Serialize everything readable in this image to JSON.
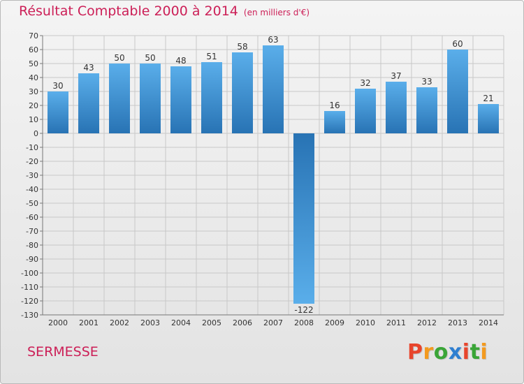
{
  "header": {
    "title": "Résultat Comptable 2000 à 2014",
    "unit": "(en milliers d'€)"
  },
  "footer": {
    "commune": "SERMESSE",
    "logo": "Proxiti",
    "logo_colors": [
      "#e8452c",
      "#f39a1f",
      "#3aa537",
      "#2f7fd0",
      "#e8452c",
      "#3aa537",
      "#f39a1f"
    ]
  },
  "chart_data": {
    "type": "bar",
    "title": "Résultat Comptable 2000 à 2014",
    "categories": [
      "2000",
      "2001",
      "2002",
      "2003",
      "2004",
      "2005",
      "2006",
      "2007",
      "2008",
      "2009",
      "2010",
      "2011",
      "2012",
      "2013",
      "2014"
    ],
    "values": [
      30,
      43,
      50,
      50,
      48,
      51,
      58,
      63,
      -122,
      16,
      32,
      37,
      33,
      60,
      21
    ],
    "value_labels": [
      "30",
      "43",
      "50",
      "50",
      "48",
      "51",
      "58",
      "63",
      "-122",
      "16",
      "32",
      "37",
      "33",
      "60",
      "21"
    ],
    "ylim": [
      -130,
      70
    ],
    "yticks": [
      70,
      60,
      50,
      40,
      30,
      20,
      10,
      0,
      -10,
      -20,
      -30,
      -40,
      -50,
      -60,
      -70,
      -80,
      -90,
      -100,
      -110,
      -120,
      -130
    ],
    "grid": true,
    "colors": {
      "bar_top": "#5aaeea",
      "bar_bottom": "#2873b4",
      "grid": "#c8c8c8",
      "axis": "#777777"
    }
  }
}
